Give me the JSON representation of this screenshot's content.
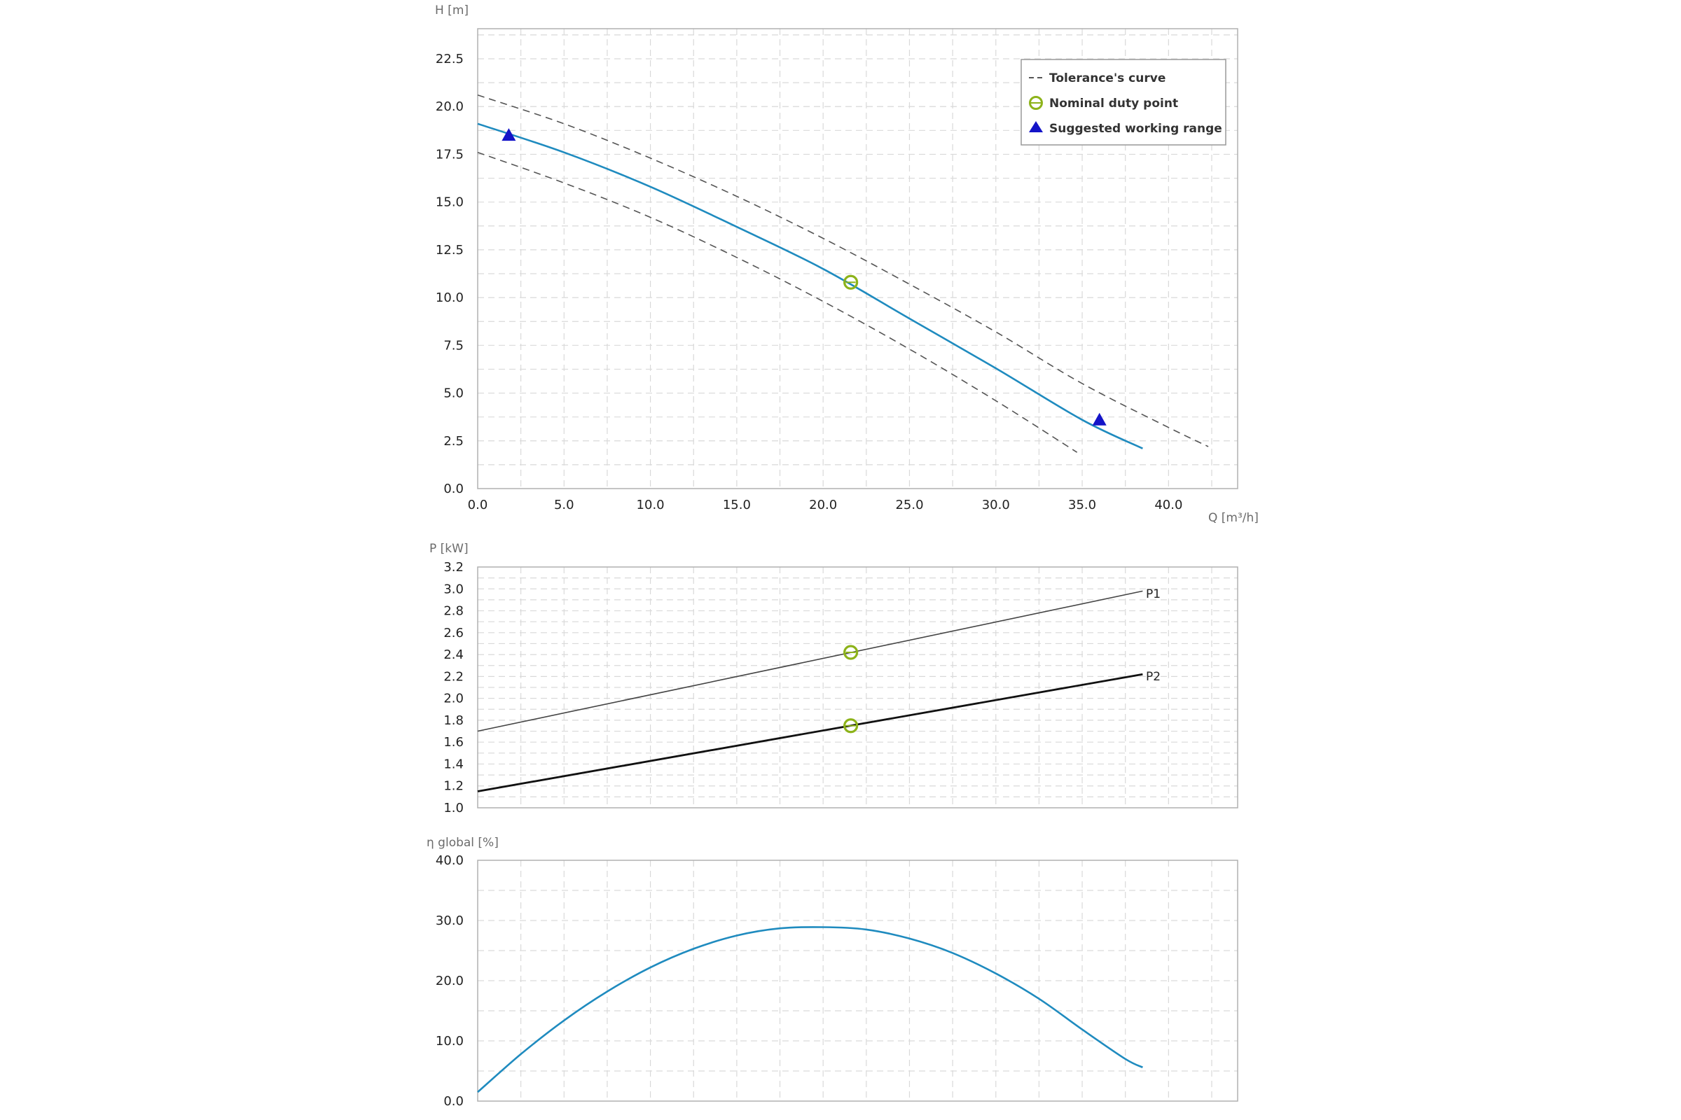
{
  "colors": {
    "curve": "#1f8bbf",
    "tolerance": "#555555",
    "duty_point": "#8db31a",
    "working_range": "#1414c8",
    "grid": "#d9d9d9",
    "frame": "#b0b0b0"
  },
  "chart_data": [
    {
      "id": "head",
      "type": "line",
      "ylabel": "H [m]",
      "xlabel": "Q [m³/h]",
      "xlim": [
        0,
        44
      ],
      "ylim": [
        0,
        24
      ],
      "xticks": [
        "0.0",
        "5.0",
        "10.0",
        "15.0",
        "20.0",
        "25.0",
        "30.0",
        "35.0",
        "40.0"
      ],
      "yticks": [
        "0.0",
        "2.5",
        "5.0",
        "7.5",
        "10.0",
        "12.5",
        "15.0",
        "17.5",
        "20.0",
        "22.5"
      ],
      "grid": true,
      "legend": {
        "position": "top-right",
        "entries": [
          {
            "label": "Tolerance's curve",
            "symbol": "dashed-line"
          },
          {
            "label": "Nominal duty point",
            "symbol": "open-circle"
          },
          {
            "label": "Suggested working range",
            "symbol": "triangle"
          }
        ]
      },
      "series": [
        {
          "style": "solid",
          "x": [
            0,
            5,
            10,
            15,
            20,
            25,
            30,
            35,
            38.5
          ],
          "y": [
            19.1,
            17.6,
            15.8,
            13.7,
            11.5,
            8.9,
            6.3,
            3.6,
            2.1
          ]
        },
        {
          "style": "tolerance",
          "x": [
            0,
            5,
            10,
            15,
            20,
            25,
            30,
            35,
            40,
            42.3
          ],
          "y": [
            20.6,
            19.1,
            17.3,
            15.3,
            13.1,
            10.7,
            8.2,
            5.5,
            3.2,
            2.2
          ]
        },
        {
          "style": "tolerance",
          "x": [
            0,
            5,
            10,
            15,
            20,
            25,
            30,
            34.7
          ],
          "y": [
            17.6,
            16.0,
            14.2,
            12.1,
            9.8,
            7.3,
            4.6,
            1.9
          ]
        }
      ],
      "duty_point": {
        "x": 21.6,
        "y": 10.8
      },
      "working_range": [
        {
          "x": 1.8,
          "y": 18.5
        },
        {
          "x": 36.0,
          "y": 3.6
        }
      ]
    },
    {
      "id": "power",
      "type": "line",
      "ylabel": "P [kW]",
      "xlabel": "",
      "xlim": [
        0,
        44
      ],
      "ylim": [
        1.0,
        3.2
      ],
      "yticks": [
        "1.0",
        "1.2",
        "1.4",
        "1.6",
        "1.8",
        "2.0",
        "2.2",
        "2.4",
        "2.6",
        "2.8",
        "3.0",
        "3.2"
      ],
      "grid": true,
      "series": [
        {
          "name": "P1",
          "x": [
            0,
            38.5
          ],
          "y": [
            1.7,
            2.98
          ]
        },
        {
          "name": "P2",
          "x": [
            0,
            38.5
          ],
          "y": [
            1.15,
            2.22
          ]
        }
      ],
      "duty_points": [
        {
          "x": 21.6,
          "y": 2.42
        },
        {
          "x": 21.6,
          "y": 1.75
        }
      ]
    },
    {
      "id": "efficiency",
      "type": "line",
      "ylabel": "η global [%]",
      "xlabel": "",
      "xlim": [
        0,
        44
      ],
      "ylim": [
        0,
        40
      ],
      "yticks": [
        "0.0",
        "10.0",
        "20.0",
        "30.0",
        "40.0"
      ],
      "grid": true,
      "series": [
        {
          "x": [
            0,
            2.5,
            5,
            7.5,
            10,
            12.5,
            15,
            17.5,
            20,
            22.5,
            25,
            27.5,
            30,
            32.5,
            35,
            37.5,
            38.5
          ],
          "y": [
            1.5,
            7.8,
            13.4,
            18.2,
            22.2,
            25.3,
            27.5,
            28.7,
            28.9,
            28.5,
            27.0,
            24.6,
            21.2,
            17.0,
            11.9,
            7.0,
            5.6
          ]
        }
      ]
    }
  ]
}
